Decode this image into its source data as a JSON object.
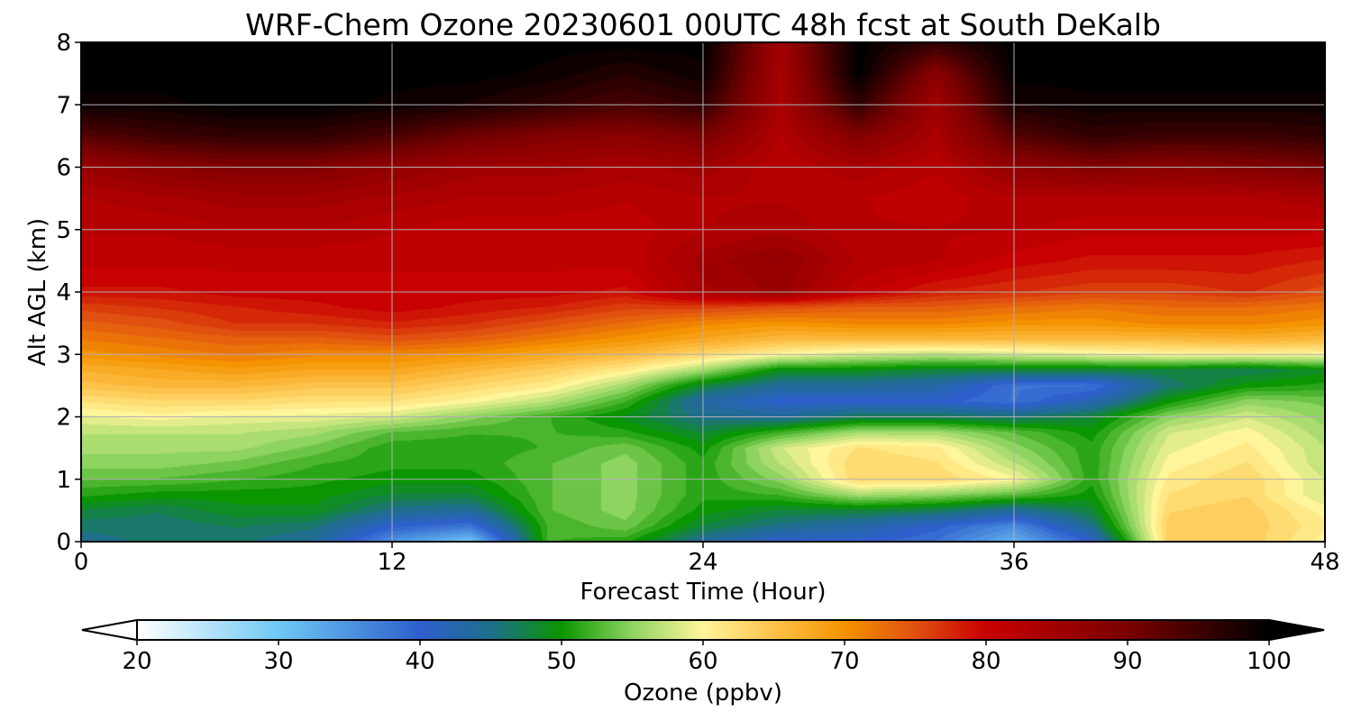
{
  "chart_data": {
    "type": "heatmap",
    "title": "WRF-Chem Ozone  20230601 00UTC 48h fcst at South DeKalb",
    "xlabel": "Forecast Time (Hour)",
    "ylabel": "Alt AGL (km)",
    "xlim": [
      0,
      48
    ],
    "ylim": [
      0,
      8
    ],
    "x_ticks": [
      0,
      12,
      24,
      36,
      48
    ],
    "y_ticks": [
      0,
      1,
      2,
      3,
      4,
      5,
      6,
      7,
      8
    ],
    "grid": true,
    "x": [
      0,
      3,
      6,
      9,
      12,
      15,
      18,
      21,
      24,
      27,
      30,
      33,
      36,
      39,
      42,
      45,
      48
    ],
    "y": [
      0,
      0.25,
      0.5,
      0.75,
      1,
      1.25,
      1.5,
      1.75,
      2,
      2.25,
      2.5,
      2.75,
      3,
      3.25,
      3.5,
      3.75,
      4,
      4.5,
      5,
      5.5,
      6,
      6.5,
      7,
      7.5,
      8
    ],
    "values": [
      [
        45,
        46,
        46,
        44,
        35,
        30,
        52,
        51,
        44,
        40,
        40,
        38,
        32,
        40,
        64,
        64,
        60
      ],
      [
        46,
        46,
        47,
        46,
        40,
        38,
        52,
        54,
        48,
        45,
        43,
        40,
        36,
        45,
        64,
        64,
        61
      ],
      [
        48,
        47,
        49,
        49,
        45,
        44,
        53,
        55,
        50,
        48,
        48,
        47,
        44,
        48,
        63,
        64,
        60
      ],
      [
        51,
        50,
        50,
        50,
        48,
        48,
        53,
        55,
        51,
        52,
        56,
        55,
        53,
        50,
        62,
        63,
        58
      ],
      [
        53,
        53,
        52,
        51,
        50,
        50,
        53,
        55,
        51,
        55,
        63,
        63,
        60,
        51,
        61,
        63,
        58
      ],
      [
        55,
        55,
        54,
        52,
        51,
        51,
        53,
        55,
        51,
        57,
        63,
        62,
        57,
        51,
        60,
        62,
        57
      ],
      [
        56,
        56,
        56,
        54,
        51,
        51,
        52,
        54,
        50,
        58,
        62,
        61,
        55,
        51,
        59,
        61,
        57
      ],
      [
        57,
        57,
        57,
        56,
        53,
        52,
        52,
        51,
        48,
        52,
        56,
        56,
        53,
        50,
        58,
        60,
        56
      ],
      [
        59,
        60,
        59,
        59,
        58,
        55,
        52,
        49,
        45,
        44,
        47,
        47,
        46,
        48,
        55,
        58,
        55
      ],
      [
        62,
        63,
        63,
        62,
        62,
        60,
        57,
        52,
        43,
        40,
        40,
        40,
        38,
        42,
        50,
        55,
        54
      ],
      [
        65,
        66,
        66,
        65,
        65,
        63,
        61,
        56,
        48,
        44,
        44,
        43,
        38,
        38,
        46,
        50,
        51
      ],
      [
        67,
        68,
        69,
        68,
        68,
        66,
        64,
        61,
        56,
        49,
        49,
        48,
        48,
        48,
        48,
        47,
        49
      ],
      [
        70,
        71,
        72,
        71,
        71,
        70,
        68,
        66,
        63,
        60,
        58,
        57,
        58,
        59,
        60,
        60,
        60
      ],
      [
        72,
        73,
        74,
        74,
        75,
        74,
        72,
        70,
        68,
        66,
        66,
        66,
        66,
        66,
        66,
        67,
        66
      ],
      [
        74,
        75,
        77,
        77,
        78,
        77,
        75,
        73,
        71,
        70,
        71,
        71,
        70,
        70,
        71,
        71,
        70
      ],
      [
        76,
        77,
        78,
        79,
        80,
        79,
        78,
        76,
        76,
        75,
        74,
        74,
        73,
        72,
        73,
        73,
        72
      ],
      [
        79,
        79,
        80,
        80,
        80,
        80,
        80,
        79,
        84,
        86,
        81,
        78,
        77,
        76,
        76,
        77,
        75
      ],
      [
        81,
        81,
        81,
        81,
        81,
        81,
        81,
        81,
        85,
        87,
        83,
        82,
        80,
        79,
        79,
        79,
        78
      ],
      [
        82,
        82,
        83,
        83,
        82,
        81,
        81,
        81,
        83,
        84,
        82,
        82,
        82,
        81,
        81,
        81,
        81
      ],
      [
        83,
        84,
        85,
        85,
        84,
        83,
        83,
        82,
        83,
        83,
        82,
        81,
        83,
        83,
        83,
        83,
        84
      ],
      [
        86,
        88,
        89,
        89,
        87,
        85,
        85,
        84,
        85,
        82,
        84,
        82,
        87,
        89,
        88,
        89,
        90
      ],
      [
        93,
        95,
        96,
        96,
        94,
        91,
        89,
        88,
        90,
        83,
        89,
        84,
        93,
        96,
        95,
        95,
        96
      ],
      [
        99,
        99,
        100,
        100,
        99,
        98,
        96,
        94,
        96,
        84,
        96,
        85,
        98,
        99,
        99,
        99,
        99
      ],
      [
        100,
        100,
        100,
        100,
        100,
        100,
        99,
        97,
        99,
        84,
        100,
        88,
        100,
        100,
        100,
        100,
        100
      ],
      [
        100,
        100,
        100,
        100,
        100,
        100,
        100,
        100,
        100,
        85,
        100,
        96,
        100,
        100,
        100,
        100,
        100
      ]
    ],
    "colorbar": {
      "label": "Ozone  (ppbv)",
      "min": 20,
      "max": 100,
      "ticks": [
        20,
        30,
        40,
        50,
        60,
        70,
        80,
        90,
        100
      ],
      "extend": "both",
      "stops": [
        {
          "v": 20,
          "c": "#ffffff"
        },
        {
          "v": 30,
          "c": "#6ec8f5"
        },
        {
          "v": 40,
          "c": "#2e5fcc"
        },
        {
          "v": 45,
          "c": "#1e6e8c"
        },
        {
          "v": 50,
          "c": "#0a9600"
        },
        {
          "v": 55,
          "c": "#8ed460"
        },
        {
          "v": 60,
          "c": "#fff59a"
        },
        {
          "v": 65,
          "c": "#fdc24a"
        },
        {
          "v": 70,
          "c": "#f59300"
        },
        {
          "v": 75,
          "c": "#e05010"
        },
        {
          "v": 80,
          "c": "#c80000"
        },
        {
          "v": 90,
          "c": "#7a0000"
        },
        {
          "v": 100,
          "c": "#000000"
        }
      ]
    }
  }
}
